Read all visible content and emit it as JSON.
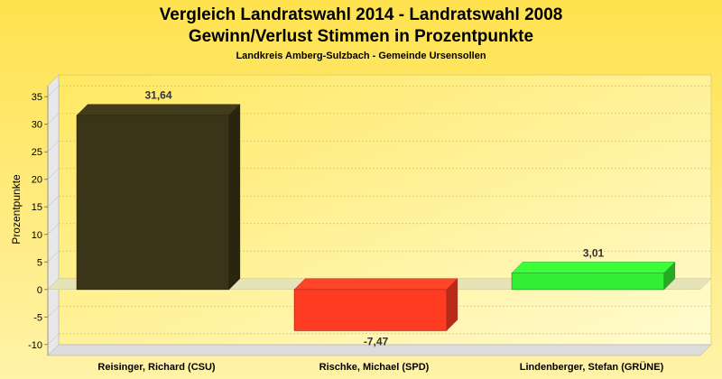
{
  "chart_data": {
    "type": "bar",
    "title": "Vergleich Landratswahl 2014 - Landratswahl 2008",
    "title_line2": "Gewinn/Verlust Stimmen in Prozentpunkte",
    "subtitle": "Landkreis Amberg-Sulzbach - Gemeinde Ursensollen",
    "ylabel": "Prozentpunkte",
    "xlabel": "",
    "ylim": [
      -12,
      37
    ],
    "yticks": [
      35,
      30,
      25,
      20,
      15,
      10,
      5,
      0,
      -5,
      -10
    ],
    "grid": true,
    "categories": [
      "Reisinger, Richard (CSU)",
      "Rischke, Michael (SPD)",
      "Lindenberger, Stefan (GRÜNE)"
    ],
    "values": [
      31.64,
      -7.47,
      3.01
    ],
    "value_labels": [
      "31,64",
      "-7,47",
      "3,01"
    ],
    "colors": [
      "#3a3418",
      "#ff3b22",
      "#33ee33"
    ]
  }
}
